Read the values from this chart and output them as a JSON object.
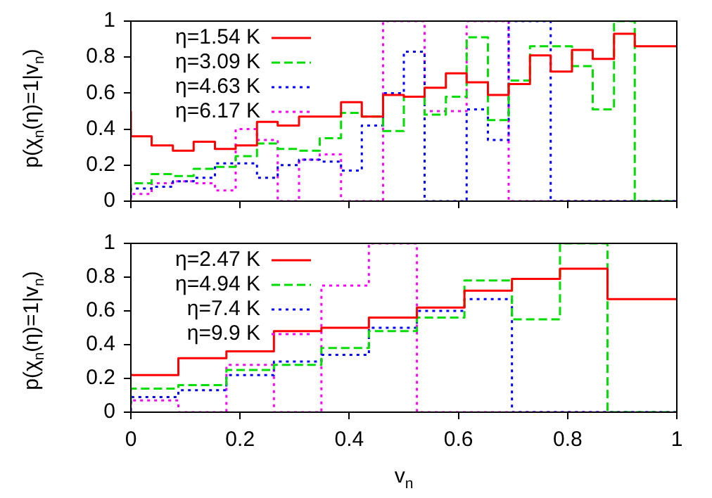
{
  "chart_data": [
    {
      "type": "step",
      "ylabel": "p(χ$_{n}$(η)=1|v$_{n}$)",
      "legend": "top left",
      "tick_labels": "y",
      "xlim": [
        0,
        1
      ],
      "xticks": [
        0,
        0.2,
        0.4,
        0.6,
        0.8,
        1
      ],
      "ylim": [
        0,
        1
      ],
      "yticks": [
        0,
        0.2,
        0.4,
        0.6,
        0.8,
        1
      ],
      "x": [
        0,
        0.038,
        0.077,
        0.115,
        0.154,
        0.192,
        0.231,
        0.269,
        0.308,
        0.346,
        0.385,
        0.423,
        0.462,
        0.5,
        0.538,
        0.577,
        0.615,
        0.654,
        0.692,
        0.731,
        0.769,
        0.808,
        0.846,
        0.885,
        0.923,
        0.962,
        1
      ],
      "series": [
        {
          "name": "η=1.54 K",
          "color": "#ff0000",
          "line_style": "solid",
          "values": [
            0.5,
            0.36,
            0.31,
            0.28,
            0.33,
            0.29,
            0.31,
            0.44,
            0.42,
            0.47,
            0.47,
            0.55,
            0.47,
            0.59,
            0.58,
            0.63,
            0.71,
            0.66,
            0.59,
            0.65,
            0.81,
            0.72,
            0.84,
            0.79,
            0.93,
            0.86,
            0.86
          ]
        },
        {
          "name": "η=3.09 K",
          "color": "#00dd00",
          "line_style": "dashed",
          "values": [
            0.05,
            0.1,
            0.15,
            0.14,
            0.18,
            0.19,
            0.25,
            0.32,
            0.29,
            0.28,
            0.35,
            0.49,
            0.47,
            0.39,
            0.58,
            0.48,
            0.58,
            0.91,
            0.45,
            0.67,
            0.86,
            0.86,
            0.75,
            0.51,
            1,
            0,
            0
          ]
        },
        {
          "name": "η=4.63 K",
          "color": "#0000ff",
          "line_style": "dotted",
          "values": [
            0.02,
            0.07,
            0.08,
            0.11,
            0.13,
            0.21,
            0.21,
            0.13,
            0.2,
            0.23,
            0.22,
            0.17,
            0.42,
            0.6,
            0.83,
            0,
            0,
            0.51,
            0.34,
            1,
            1,
            0,
            0,
            0,
            0,
            0,
            0
          ]
        },
        {
          "name": "η=6.17 K",
          "color": "#ff00ff",
          "line_style": "dotted",
          "values": [
            0.01,
            0.04,
            0.1,
            0.11,
            0.1,
            0.06,
            0.4,
            0.34,
            0,
            0.23,
            0.26,
            0,
            0,
            1,
            1,
            0.5,
            0.5,
            1,
            1,
            0,
            0,
            0,
            0,
            0,
            0,
            0,
            0
          ]
        }
      ]
    },
    {
      "type": "step",
      "xlabel": "v$_{n}$",
      "ylabel": "p(χ$_{n}$(η)=1|v$_{n}$)",
      "legend": "top left",
      "xlim": [
        0,
        1
      ],
      "xticks": [
        0,
        0.2,
        0.4,
        0.6,
        0.8,
        1
      ],
      "ylim": [
        0,
        1
      ],
      "yticks": [
        0,
        0.2,
        0.4,
        0.6,
        0.8,
        1
      ],
      "x": [
        0,
        0.087,
        0.175,
        0.262,
        0.349,
        0.436,
        0.524,
        0.611,
        0.698,
        0.786,
        0.873,
        0.96,
        1
      ],
      "series": [
        {
          "name": "η=2.47 K",
          "color": "#ff0000",
          "line_style": "solid",
          "values": [
            0.23,
            0.22,
            0.32,
            0.36,
            0.48,
            0.5,
            0.56,
            0.62,
            0.72,
            0.79,
            0.85,
            0.67,
            0.67
          ]
        },
        {
          "name": "η=4.94 K",
          "color": "#00dd00",
          "line_style": "dashed",
          "values": [
            0.05,
            0.14,
            0.16,
            0.25,
            0.28,
            0.38,
            0.48,
            0.56,
            0.78,
            0.55,
            1,
            0,
            0
          ]
        },
        {
          "name": "η=7.4 K",
          "color": "#0000ff",
          "line_style": "dotted",
          "values": [
            0.01,
            0.09,
            0.13,
            0.22,
            0.3,
            0.34,
            0.5,
            0.6,
            0.67,
            0,
            0,
            0,
            0
          ]
        },
        {
          "name": "η=9.9 K",
          "color": "#ff00ff",
          "line_style": "dotted",
          "values": [
            0,
            0.07,
            0,
            0.28,
            0,
            0.75,
            1,
            0,
            0,
            0,
            0,
            0,
            0
          ]
        }
      ]
    }
  ]
}
